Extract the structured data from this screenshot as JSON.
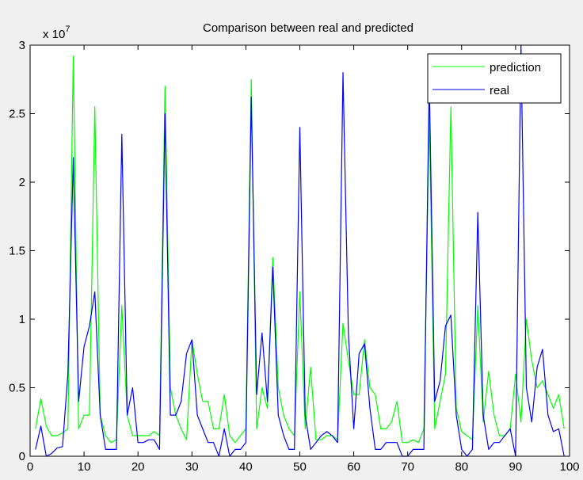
{
  "chart_data": {
    "type": "line",
    "title": "Comparison between real and predicted",
    "xlabel": "",
    "ylabel": "",
    "y_exponent_label": "x 10",
    "y_exponent": "7",
    "xlim": [
      0,
      100
    ],
    "ylim": [
      0,
      3
    ],
    "xticks": [
      0,
      10,
      20,
      30,
      40,
      50,
      60,
      70,
      80,
      90,
      100
    ],
    "yticks": [
      0,
      0.5,
      1,
      1.5,
      2,
      2.5,
      3
    ],
    "ytick_labels": [
      "0",
      "0.5",
      "1",
      "1.5",
      "2",
      "2.5",
      "3"
    ],
    "grid": false,
    "legend_position": "top-right",
    "series": [
      {
        "name": "prediction",
        "color": "#00ff00",
        "values": [
          [
            1,
            0.2
          ],
          [
            2,
            0.42
          ],
          [
            3,
            0.22
          ],
          [
            4,
            0.15
          ],
          [
            5,
            0.15
          ],
          [
            6,
            0.17
          ],
          [
            7,
            0.2
          ],
          [
            8,
            2.92
          ],
          [
            9,
            0.2
          ],
          [
            10,
            0.3
          ],
          [
            11,
            0.3
          ],
          [
            12,
            2.55
          ],
          [
            13,
            0.3
          ],
          [
            14,
            0.15
          ],
          [
            15,
            0.1
          ],
          [
            16,
            0.12
          ],
          [
            17,
            1.1
          ],
          [
            18,
            0.3
          ],
          [
            19,
            0.15
          ],
          [
            20,
            0.15
          ],
          [
            21,
            0.15
          ],
          [
            22,
            0.15
          ],
          [
            23,
            0.18
          ],
          [
            24,
            0.15
          ],
          [
            25,
            2.7
          ],
          [
            26,
            0.5
          ],
          [
            27,
            0.3
          ],
          [
            28,
            0.2
          ],
          [
            29,
            0.12
          ],
          [
            30,
            0.85
          ],
          [
            31,
            0.6
          ],
          [
            32,
            0.4
          ],
          [
            33,
            0.4
          ],
          [
            34,
            0.2
          ],
          [
            35,
            0.2
          ],
          [
            36,
            0.45
          ],
          [
            37,
            0.15
          ],
          [
            38,
            0.1
          ],
          [
            39,
            0.15
          ],
          [
            40,
            0.2
          ],
          [
            41,
            2.75
          ],
          [
            42,
            0.2
          ],
          [
            43,
            0.5
          ],
          [
            44,
            0.35
          ],
          [
            45,
            1.45
          ],
          [
            46,
            0.5
          ],
          [
            47,
            0.3
          ],
          [
            48,
            0.2
          ],
          [
            49,
            0.15
          ],
          [
            50,
            1.2
          ],
          [
            51,
            0.2
          ],
          [
            52,
            0.65
          ],
          [
            53,
            0.12
          ],
          [
            54,
            0.12
          ],
          [
            55,
            0.15
          ],
          [
            56,
            0.15
          ],
          [
            57,
            0.12
          ],
          [
            58,
            0.97
          ],
          [
            59,
            0.7
          ],
          [
            60,
            0.45
          ],
          [
            61,
            0.45
          ],
          [
            62,
            0.85
          ],
          [
            63,
            0.5
          ],
          [
            64,
            0.45
          ],
          [
            65,
            0.2
          ],
          [
            66,
            0.2
          ],
          [
            67,
            0.25
          ],
          [
            68,
            0.4
          ],
          [
            69,
            0.1
          ],
          [
            70,
            0.1
          ],
          [
            71,
            0.12
          ],
          [
            72,
            0.1
          ],
          [
            73,
            0.2
          ],
          [
            74,
            2.5
          ],
          [
            75,
            0.2
          ],
          [
            76,
            0.4
          ],
          [
            77,
            0.6
          ],
          [
            78,
            2.55
          ],
          [
            79,
            0.35
          ],
          [
            80,
            0.18
          ],
          [
            81,
            0.15
          ],
          [
            82,
            0.12
          ],
          [
            83,
            1.1
          ],
          [
            84,
            0.25
          ],
          [
            85,
            0.62
          ],
          [
            86,
            0.3
          ],
          [
            87,
            0.15
          ],
          [
            88,
            0.15
          ],
          [
            89,
            0.2
          ],
          [
            90,
            0.6
          ],
          [
            91,
            0.25
          ],
          [
            92,
            1.0
          ],
          [
            93,
            0.7
          ],
          [
            94,
            0.5
          ],
          [
            95,
            0.55
          ],
          [
            96,
            0.45
          ],
          [
            97,
            0.35
          ],
          [
            98,
            0.45
          ],
          [
            99,
            0.2
          ]
        ]
      },
      {
        "name": "real",
        "color": "#0000ff",
        "values": [
          [
            1,
            0.05
          ],
          [
            2,
            0.22
          ],
          [
            3,
            0.0
          ],
          [
            4,
            0.02
          ],
          [
            5,
            0.06
          ],
          [
            6,
            0.07
          ],
          [
            7,
            0.6
          ],
          [
            8,
            2.18
          ],
          [
            9,
            0.4
          ],
          [
            10,
            0.8
          ],
          [
            11,
            0.95
          ],
          [
            12,
            1.2
          ],
          [
            13,
            0.3
          ],
          [
            14,
            0.05
          ],
          [
            15,
            0.05
          ],
          [
            16,
            0.05
          ],
          [
            17,
            2.35
          ],
          [
            18,
            0.3
          ],
          [
            19,
            0.5
          ],
          [
            20,
            0.1
          ],
          [
            21,
            0.1
          ],
          [
            22,
            0.12
          ],
          [
            23,
            0.12
          ],
          [
            24,
            0.05
          ],
          [
            25,
            2.5
          ],
          [
            26,
            0.3
          ],
          [
            27,
            0.3
          ],
          [
            28,
            0.4
          ],
          [
            29,
            0.75
          ],
          [
            30,
            0.85
          ],
          [
            31,
            0.3
          ],
          [
            32,
            0.2
          ],
          [
            33,
            0.1
          ],
          [
            34,
            0.1
          ],
          [
            35,
            0.0
          ],
          [
            36,
            0.2
          ],
          [
            37,
            0.0
          ],
          [
            38,
            0.05
          ],
          [
            39,
            0.05
          ],
          [
            40,
            0.1
          ],
          [
            41,
            2.62
          ],
          [
            42,
            0.45
          ],
          [
            43,
            0.9
          ],
          [
            44,
            0.4
          ],
          [
            45,
            1.38
          ],
          [
            46,
            0.3
          ],
          [
            47,
            0.15
          ],
          [
            48,
            0.05
          ],
          [
            49,
            0.05
          ],
          [
            50,
            2.4
          ],
          [
            51,
            0.3
          ],
          [
            52,
            0.05
          ],
          [
            53,
            0.1
          ],
          [
            54,
            0.15
          ],
          [
            55,
            0.18
          ],
          [
            56,
            0.15
          ],
          [
            57,
            0.1
          ],
          [
            58,
            2.8
          ],
          [
            59,
            0.9
          ],
          [
            60,
            0.2
          ],
          [
            61,
            0.75
          ],
          [
            62,
            0.82
          ],
          [
            63,
            0.35
          ],
          [
            64,
            0.05
          ],
          [
            65,
            0.05
          ],
          [
            66,
            0.1
          ],
          [
            67,
            0.1
          ],
          [
            68,
            0.1
          ],
          [
            69,
            0.0
          ],
          [
            70,
            0.0
          ],
          [
            71,
            0.05
          ],
          [
            72,
            0.05
          ],
          [
            73,
            0.05
          ],
          [
            74,
            2.75
          ],
          [
            75,
            0.4
          ],
          [
            76,
            0.55
          ],
          [
            77,
            0.95
          ],
          [
            78,
            1.03
          ],
          [
            79,
            0.3
          ],
          [
            80,
            0.05
          ],
          [
            81,
            0.0
          ],
          [
            82,
            0.05
          ],
          [
            83,
            1.78
          ],
          [
            84,
            0.3
          ],
          [
            85,
            0.05
          ],
          [
            86,
            0.1
          ],
          [
            87,
            0.1
          ],
          [
            88,
            0.15
          ],
          [
            89,
            0.2
          ],
          [
            90,
            0.0
          ],
          [
            91,
            3.0
          ],
          [
            92,
            0.5
          ],
          [
            93,
            0.25
          ],
          [
            94,
            0.65
          ],
          [
            95,
            0.78
          ],
          [
            96,
            0.3
          ],
          [
            97,
            0.18
          ],
          [
            98,
            0.2
          ],
          [
            99,
            0.0
          ]
        ]
      }
    ]
  }
}
